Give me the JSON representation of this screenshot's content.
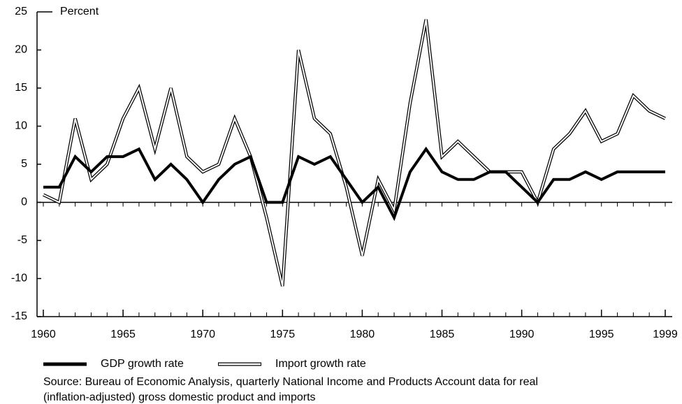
{
  "chart_data": {
    "type": "line",
    "y_label": "Percent",
    "x": [
      1960,
      1961,
      1962,
      1963,
      1964,
      1965,
      1966,
      1967,
      1968,
      1969,
      1970,
      1971,
      1972,
      1973,
      1974,
      1975,
      1976,
      1977,
      1978,
      1979,
      1980,
      1981,
      1982,
      1983,
      1984,
      1985,
      1986,
      1987,
      1988,
      1989,
      1990,
      1991,
      1992,
      1993,
      1994,
      1995,
      1996,
      1997,
      1998,
      1999
    ],
    "series": [
      {
        "name": "GDP growth rate",
        "color": "#000000",
        "style": "solid",
        "values": [
          2,
          2,
          6,
          4,
          6,
          6,
          7,
          3,
          5,
          3,
          0,
          3,
          5,
          6,
          0,
          0,
          6,
          5,
          6,
          3,
          0,
          2,
          -2,
          4,
          7,
          4,
          3,
          3,
          4,
          4,
          2,
          0,
          3,
          3,
          4,
          3,
          4,
          4,
          4,
          4
        ]
      },
      {
        "name": "Import growth rate",
        "color": "#000000",
        "style": "double",
        "values": [
          1,
          0,
          11,
          3,
          5,
          11,
          15,
          7,
          15,
          6,
          4,
          5,
          11,
          6,
          -2,
          -11,
          20,
          11,
          9,
          2,
          -7,
          3,
          -1,
          13,
          24,
          6,
          8,
          6,
          4,
          4,
          4,
          0,
          7,
          9,
          12,
          8,
          9,
          14,
          12,
          11
        ]
      }
    ],
    "xlim": [
      1960,
      1999
    ],
    "xticks": [
      1960,
      1965,
      1970,
      1975,
      1980,
      1985,
      1990,
      1995,
      1999
    ],
    "ylim": [
      -15,
      25
    ],
    "yticks": [
      -15,
      -10,
      -5,
      0,
      5,
      10,
      15,
      20,
      25
    ],
    "source": [
      "Source: Bureau of Economic Analysis, quarterly National Income and Products Account data for real",
      "(inflation-adjusted) gross domestic product and imports"
    ]
  }
}
